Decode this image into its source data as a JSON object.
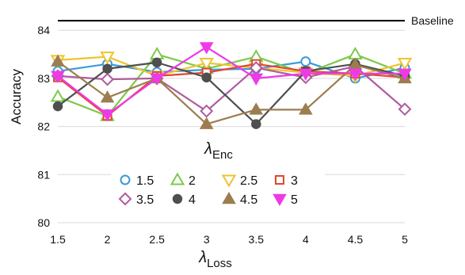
{
  "chart_data": {
    "type": "line",
    "x": [
      1.5,
      2,
      2.5,
      3,
      3.5,
      4,
      4.5,
      5
    ],
    "x_ticks": [
      "1.5",
      "2",
      "2.5",
      "3",
      "3.5",
      "4",
      "4.5",
      "5"
    ],
    "y_ticks": [
      "80",
      "81",
      "82",
      "83",
      "84"
    ],
    "ylim": [
      80,
      84.3
    ],
    "ylabel": "Accuracy",
    "xlabel": {
      "symbol": "λ",
      "subscript": "Loss"
    },
    "legend_title": {
      "symbol": "λ",
      "subscript": "Enc"
    },
    "legend_placement": "bottom-center inside plot",
    "grid": "horizontal",
    "baseline": {
      "label": "Baseline",
      "value": 84.2,
      "color": "#000000"
    },
    "series": [
      {
        "name": "1.5",
        "color": "#3a9ad9",
        "marker": "circle-open",
        "values": [
          83.15,
          83.3,
          83.13,
          83.18,
          83.2,
          83.35,
          83.0,
          83.22
        ]
      },
      {
        "name": "2",
        "color": "#7cc94d",
        "marker": "triangle-up-open",
        "values": [
          82.62,
          82.22,
          83.5,
          83.2,
          83.45,
          83.1,
          83.5,
          83.1
        ]
      },
      {
        "name": "2.5",
        "color": "#eec42c",
        "marker": "triangle-down-open",
        "values": [
          83.38,
          83.45,
          83.05,
          83.32,
          83.22,
          83.12,
          83.05,
          83.32
        ]
      },
      {
        "name": "3",
        "color": "#e2462f",
        "marker": "square-open",
        "values": [
          83.02,
          82.22,
          83.05,
          83.12,
          83.3,
          83.15,
          83.1,
          83.02
        ]
      },
      {
        "name": "3.5",
        "color": "#b05b9e",
        "marker": "diamond-open",
        "values": [
          83.05,
          82.98,
          83.0,
          82.32,
          83.22,
          83.02,
          83.25,
          82.36
        ]
      },
      {
        "name": "4",
        "color": "#4f4f4f",
        "marker": "circle-filled",
        "values": [
          82.42,
          83.2,
          83.33,
          83.02,
          82.05,
          83.15,
          83.3,
          83.05
        ]
      },
      {
        "name": "4.5",
        "color": "#9c7d4f",
        "marker": "triangle-up-filled",
        "values": [
          83.35,
          82.6,
          83.0,
          82.05,
          82.35,
          82.35,
          83.28,
          83.0
        ]
      },
      {
        "name": "5",
        "color": "#ee3ae6",
        "marker": "triangle-down-filled",
        "values": [
          83.05,
          82.25,
          83.0,
          83.65,
          83.0,
          83.1,
          83.1,
          83.1
        ]
      }
    ]
  }
}
